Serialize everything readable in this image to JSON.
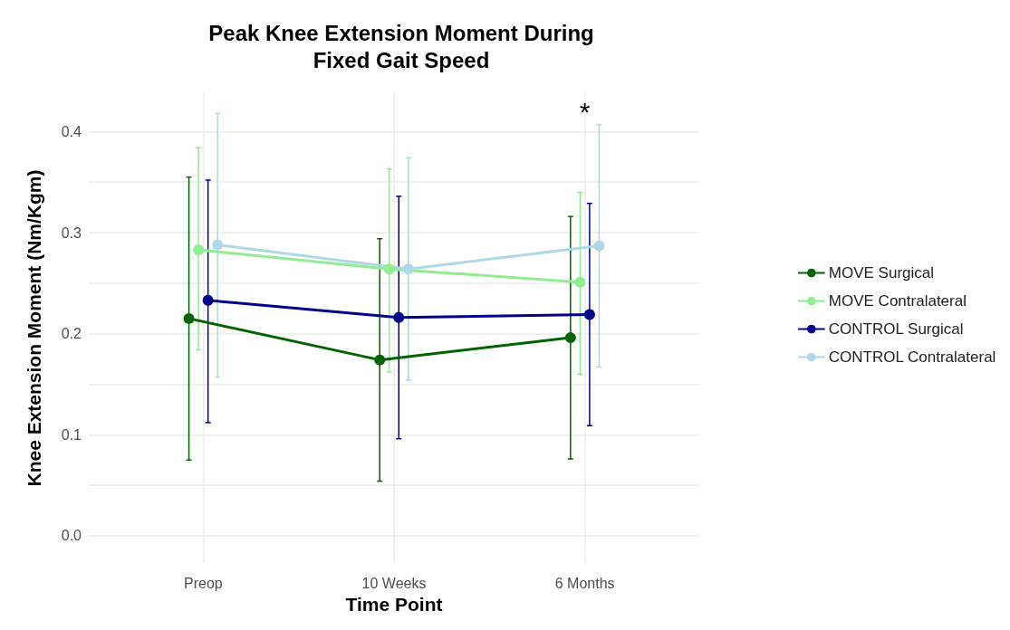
{
  "chart_data": {
    "type": "line",
    "title": "Peak Knee Extension Moment During\nFixed Gait Speed",
    "xlabel": "Time Point",
    "ylabel": "Knee Extension Moment (Nm/Kgm)",
    "categories": [
      "Preop",
      "10 Weeks",
      "6 Months"
    ],
    "series": [
      {
        "name": "MOVE Surgical",
        "color": "#006400",
        "values": [
          0.215,
          0.174,
          0.196
        ],
        "errors": [
          [
            0.075,
            0.355
          ],
          [
            0.054,
            0.294
          ],
          [
            0.076,
            0.316
          ]
        ]
      },
      {
        "name": "MOVE Contralateral",
        "color": "#90ee90",
        "values": [
          0.283,
          0.264,
          0.251
        ],
        "errors": [
          [
            0.184,
            0.384
          ],
          [
            0.162,
            0.363
          ],
          [
            0.16,
            0.34
          ]
        ]
      },
      {
        "name": "CONTROL Surgical",
        "color": "#00008b",
        "values": [
          0.233,
          0.216,
          0.219
        ],
        "errors": [
          [
            0.112,
            0.352
          ],
          [
            0.096,
            0.336
          ],
          [
            0.109,
            0.329
          ]
        ]
      },
      {
        "name": "CONTROL Contralateral",
        "color": "#add8e6",
        "values": [
          0.288,
          0.264,
          0.287
        ],
        "errors": [
          [
            0.157,
            0.418
          ],
          [
            0.154,
            0.374
          ],
          [
            0.167,
            0.407
          ]
        ]
      }
    ],
    "ylim": [
      -0.027,
      0.438
    ],
    "yticks": [
      {
        "value": 0,
        "label": "0.0"
      },
      {
        "value": 0.05,
        "label": null
      },
      0.1,
      {
        "value": 0.15,
        "label": null
      },
      0.2,
      {
        "value": 0.25,
        "label": null
      },
      0.3,
      {
        "value": 0.35,
        "label": null
      },
      0.4
    ],
    "annotations": [
      "*"
    ],
    "grid": true,
    "legend": "right",
    "marker": "circle",
    "line_style": "solid"
  }
}
